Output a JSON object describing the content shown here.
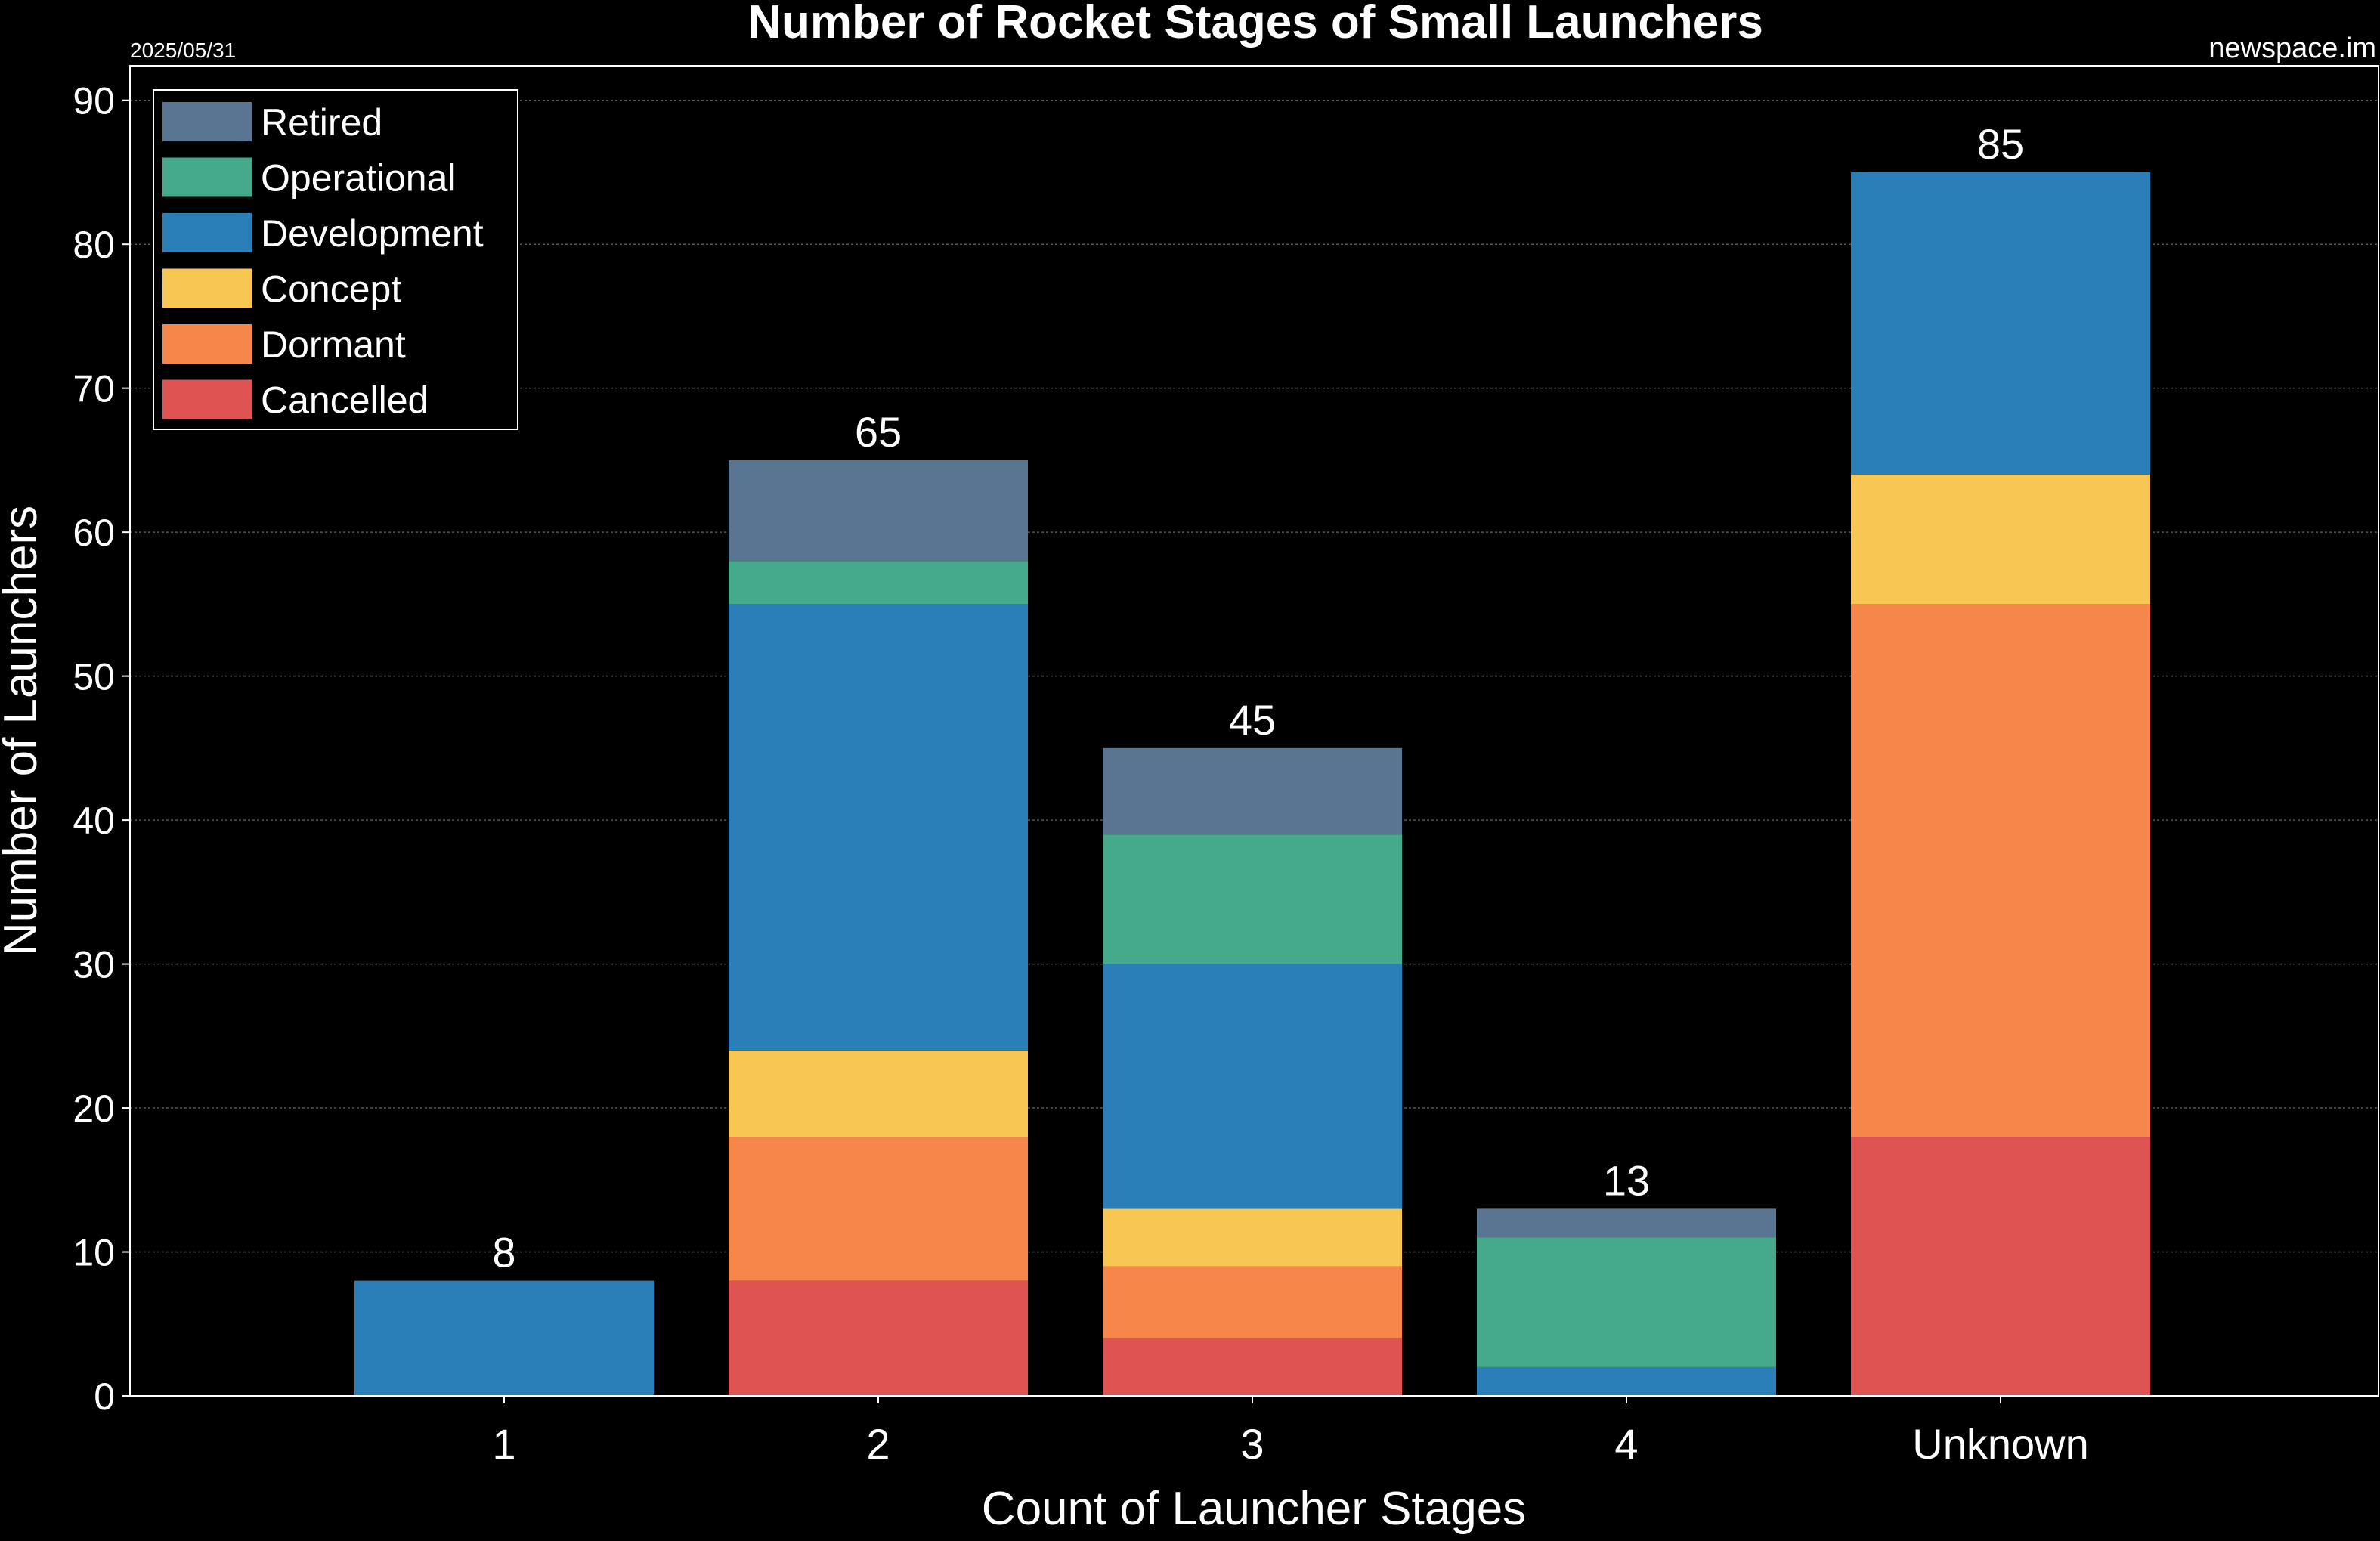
{
  "chart_data": {
    "type": "bar",
    "stacked": true,
    "title": "Number of Rocket Stages of Small Launchers",
    "date": "2025/05/31",
    "source": "newspace.im",
    "xlabel": "Count of Launcher Stages",
    "ylabel": "Number of Launchers",
    "categories": [
      "1",
      "2",
      "3",
      "4",
      "Unknown"
    ],
    "ylim": [
      0,
      90
    ],
    "yticks": [
      0,
      10,
      20,
      30,
      40,
      50,
      60,
      70,
      80,
      90
    ],
    "grid": true,
    "legend_position": "top-left",
    "totals": [
      8,
      65,
      45,
      13,
      85
    ],
    "series": [
      {
        "name": "Cancelled",
        "color": "#e05353",
        "values": [
          0,
          8,
          4,
          0,
          18
        ]
      },
      {
        "name": "Dormant",
        "color": "#f7864a",
        "values": [
          0,
          10,
          5,
          0,
          37
        ]
      },
      {
        "name": "Concept",
        "color": "#f8c653",
        "values": [
          0,
          6,
          4,
          0,
          9
        ]
      },
      {
        "name": "Development",
        "color": "#2a7fb8",
        "values": [
          8,
          31,
          17,
          2,
          21
        ]
      },
      {
        "name": "Operational",
        "color": "#45aa8b",
        "values": [
          0,
          3,
          9,
          9,
          0
        ]
      },
      {
        "name": "Retired",
        "color": "#5a7591",
        "values": [
          0,
          7,
          6,
          2,
          0
        ]
      }
    ],
    "legend_order": [
      "Retired",
      "Operational",
      "Development",
      "Concept",
      "Dormant",
      "Cancelled"
    ]
  }
}
